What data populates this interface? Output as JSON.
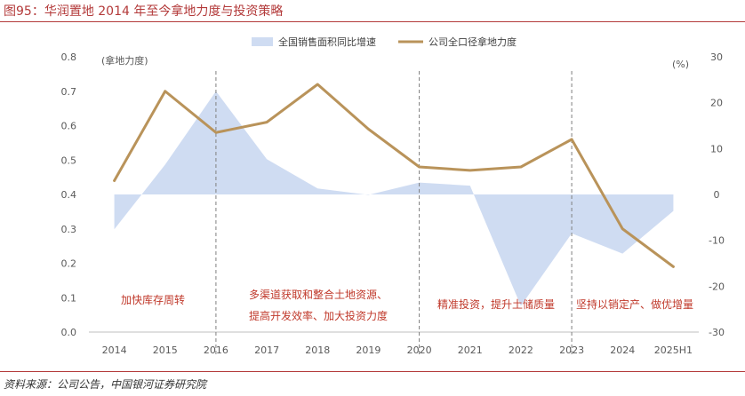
{
  "header": {
    "title": "图95：华润置地 2014 年至今拿地力度与投资策略"
  },
  "footer": {
    "source": "资料来源：公司公告，中国银河证券研究院"
  },
  "colors": {
    "area": "#cfdcf2",
    "line": "#b9935a",
    "annotation": "#c0392b",
    "title": "#b33a3a"
  },
  "chart_data": {
    "type": "line",
    "categories": [
      "2014",
      "2015",
      "2016",
      "2017",
      "2018",
      "2019",
      "2020",
      "2021",
      "2022",
      "2023",
      "2024",
      "2025H1"
    ],
    "series": [
      {
        "name": "全国销售面积同比增速",
        "type": "area",
        "axis": "right",
        "values": [
          -7.6,
          6.5,
          22.5,
          7.7,
          1.3,
          -0.1,
          2.6,
          1.9,
          -24.3,
          -8.5,
          -12.9,
          -3.6
        ]
      },
      {
        "name": "公司全口径拿地力度",
        "type": "line",
        "axis": "left",
        "values": [
          0.44,
          0.7,
          0.58,
          0.61,
          0.72,
          0.59,
          0.48,
          0.47,
          0.48,
          0.56,
          0.3,
          0.19
        ]
      }
    ],
    "y_left": {
      "label": "(拿地力度)",
      "lim": [
        0.0,
        0.8
      ],
      "ticks": [
        "0.0",
        "0.1",
        "0.2",
        "0.3",
        "0.4",
        "0.5",
        "0.6",
        "0.7",
        "0.8"
      ]
    },
    "y_right": {
      "label": "(%)",
      "lim": [
        -30,
        30
      ],
      "ticks": [
        "-30",
        "-20",
        "-10",
        "0",
        "10",
        "20",
        "30"
      ]
    },
    "legend": {
      "position": "top"
    },
    "dividers_after": [
      "2016",
      "2020",
      "2023"
    ],
    "annotations": [
      {
        "lines": [
          "加快库存周转"
        ],
        "from": "2014",
        "to": "2016"
      },
      {
        "lines": [
          "多渠道获取和整合土地资源、",
          "提高开发效率、加大投资力度"
        ],
        "from": "2016",
        "to": "2020"
      },
      {
        "lines": [
          "精准投资，提升土储质量"
        ],
        "from": "2020",
        "to": "2023"
      },
      {
        "lines": [
          "坚持以销定产、做优增量"
        ],
        "from": "2023",
        "to": "2025H1"
      }
    ]
  }
}
